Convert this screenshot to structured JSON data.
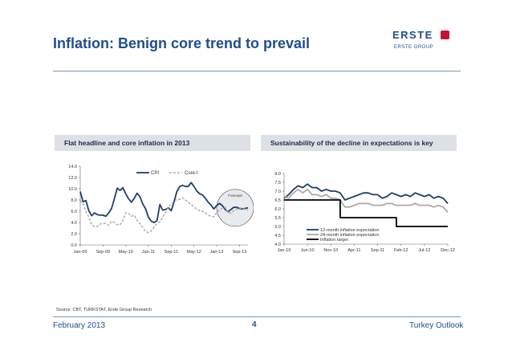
{
  "slide": {
    "title": "Inflation: Benign core trend to prevail",
    "logo_word": "ERSTE",
    "logo_sub": "ERSTE GROUP",
    "source": "Source: CBT, TURKSTAT, Erste Group Research",
    "footer_left": "February 2013",
    "footer_page": "4",
    "footer_right": "Turkey Outlook"
  },
  "colors": {
    "navy": "#1f3f6b",
    "grey": "#aaaaaa",
    "black": "#000000",
    "accent": "#c8102e"
  },
  "chart_data": [
    {
      "type": "line",
      "title": "Flat headline and core inflation in 2013",
      "ylim": [
        0,
        14
      ],
      "yticks": [
        "0.0",
        "2.0",
        "4.0",
        "6.0",
        "8.0",
        "10.0",
        "12.0",
        "14.0"
      ],
      "xticks": [
        "Jan-09",
        "Sep-09",
        "May-10",
        "Jan-11",
        "Sep-11",
        "May-12",
        "Jan-13",
        "Sep-13"
      ],
      "annotation": "Forecast",
      "series": [
        {
          "name": "CPI",
          "style": "solid",
          "values": [
            9.5,
            7.7,
            7.9,
            6.1,
            5.2,
            5.7,
            5.4,
            5.3,
            5.3,
            5.1,
            5.7,
            6.5,
            8.2,
            10.1,
            9.7,
            10.2,
            9.1,
            8.2,
            7.6,
            8.3,
            9.2,
            8.6,
            7.3,
            6.4,
            4.9,
            4.2,
            4.0,
            4.3,
            7.2,
            6.2,
            6.3,
            6.6,
            6.1,
            7.7,
            9.5,
            10.4,
            10.6,
            10.4,
            10.4,
            11.1,
            10.4,
            9.6,
            9.1,
            8.9,
            8.3,
            7.6,
            7.1,
            6.4,
            7.0,
            7.4,
            7.0,
            6.3,
            5.9,
            6.3,
            6.7,
            6.7,
            6.5,
            6.4,
            6.5,
            6.6
          ]
        },
        {
          "name": "Core-I",
          "style": "dashed",
          "values": [
            7.9,
            7.3,
            5.9,
            5.0,
            3.6,
            3.3,
            3.3,
            3.7,
            3.9,
            3.8,
            3.5,
            4.2,
            4.0,
            3.6,
            3.6,
            4.3,
            5.7,
            5.6,
            5.1,
            5.3,
            4.4,
            3.8,
            3.1,
            2.4,
            2.2,
            2.5,
            3.2,
            3.8,
            4.1,
            5.0,
            5.8,
            6.6,
            7.4,
            7.7,
            8.1,
            8.1,
            8.4,
            8.0,
            7.6,
            7.2,
            6.7,
            6.4,
            6.1,
            6.0,
            5.7,
            5.3,
            5.1,
            5.0,
            5.8,
            6.3,
            6.5,
            6.7,
            5.8,
            5.6,
            6.1,
            6.4,
            6.6,
            6.5,
            6.3,
            6.2
          ]
        }
      ]
    },
    {
      "type": "line",
      "title": "Sustainability of the decline in expectations is key",
      "ylim": [
        4.0,
        8.0
      ],
      "yticks": [
        "4.0",
        "4.5",
        "5.0",
        "5.5",
        "6.0",
        "6.5",
        "7.0",
        "7.5",
        "8.0"
      ],
      "xticks": [
        "Jan-10",
        "Jun-10",
        "Nov-10",
        "Apr-11",
        "Sep-11",
        "Feb-12",
        "Jul-12",
        "Dec-12"
      ],
      "series": [
        {
          "name": "12-month inflation expectation",
          "color": "#1f3f6b",
          "values": [
            6.6,
            6.8,
            7.1,
            7.3,
            7.2,
            7.4,
            7.2,
            7.2,
            7.0,
            7.1,
            7.0,
            7.0,
            6.9,
            6.5,
            6.6,
            6.7,
            6.8,
            6.9,
            6.9,
            6.8,
            6.8,
            6.6,
            6.7,
            6.9,
            6.8,
            6.7,
            6.8,
            6.7,
            6.9,
            6.8,
            6.7,
            6.8,
            6.6,
            6.7,
            6.6,
            6.3
          ]
        },
        {
          "name": "24-month inflation expectation",
          "color": "#aaaaaa",
          "values": [
            6.7,
            6.6,
            6.9,
            7.1,
            6.9,
            7.1,
            6.8,
            6.8,
            6.7,
            6.8,
            6.6,
            6.6,
            6.5,
            6.1,
            6.1,
            6.2,
            6.3,
            6.3,
            6.3,
            6.2,
            6.2,
            6.2,
            6.3,
            6.3,
            6.2,
            6.2,
            6.2,
            6.2,
            6.3,
            6.2,
            6.2,
            6.2,
            6.1,
            6.2,
            6.1,
            5.8
          ]
        },
        {
          "name": "Inflation target",
          "color": "#000000",
          "values": [
            6.5,
            6.5,
            6.5,
            6.5,
            6.5,
            6.5,
            6.5,
            6.5,
            6.5,
            6.5,
            6.5,
            6.5,
            5.5,
            5.5,
            5.5,
            5.5,
            5.5,
            5.5,
            5.5,
            5.5,
            5.5,
            5.5,
            5.5,
            5.5,
            5.0,
            5.0,
            5.0,
            5.0,
            5.0,
            5.0,
            5.0,
            5.0,
            5.0,
            5.0,
            5.0,
            5.0
          ]
        }
      ]
    }
  ]
}
